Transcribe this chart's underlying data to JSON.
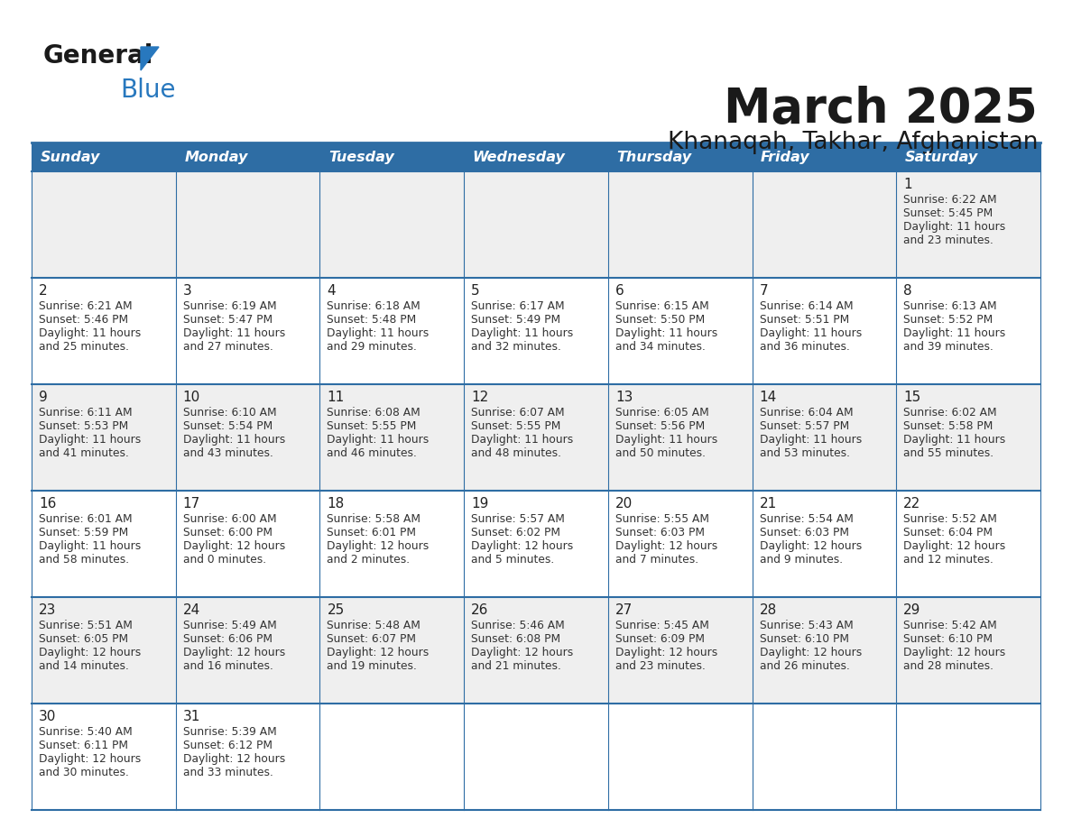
{
  "title": "March 2025",
  "subtitle": "Khanaqah, Takhar, Afghanistan",
  "header_color": "#2E6DA4",
  "header_text_color": "#FFFFFF",
  "days_of_week": [
    "Sunday",
    "Monday",
    "Tuesday",
    "Wednesday",
    "Thursday",
    "Friday",
    "Saturday"
  ],
  "background_light": "#EFEFEF",
  "background_white": "#FFFFFF",
  "line_color": "#2E6DA4",
  "text_color": "#333333",
  "logo_general_color": "#1a1a1a",
  "logo_blue_color": "#2878BE",
  "title_color": "#1a1a1a",
  "subtitle_color": "#1a1a1a",
  "calendar_data": [
    [
      null,
      null,
      null,
      null,
      null,
      null,
      {
        "day": 1,
        "sunrise": "6:22 AM",
        "sunset": "5:45 PM",
        "daylight_h": "11 hours",
        "daylight_m": "and 23 minutes."
      }
    ],
    [
      {
        "day": 2,
        "sunrise": "6:21 AM",
        "sunset": "5:46 PM",
        "daylight_h": "11 hours",
        "daylight_m": "and 25 minutes."
      },
      {
        "day": 3,
        "sunrise": "6:19 AM",
        "sunset": "5:47 PM",
        "daylight_h": "11 hours",
        "daylight_m": "and 27 minutes."
      },
      {
        "day": 4,
        "sunrise": "6:18 AM",
        "sunset": "5:48 PM",
        "daylight_h": "11 hours",
        "daylight_m": "and 29 minutes."
      },
      {
        "day": 5,
        "sunrise": "6:17 AM",
        "sunset": "5:49 PM",
        "daylight_h": "11 hours",
        "daylight_m": "and 32 minutes."
      },
      {
        "day": 6,
        "sunrise": "6:15 AM",
        "sunset": "5:50 PM",
        "daylight_h": "11 hours",
        "daylight_m": "and 34 minutes."
      },
      {
        "day": 7,
        "sunrise": "6:14 AM",
        "sunset": "5:51 PM",
        "daylight_h": "11 hours",
        "daylight_m": "and 36 minutes."
      },
      {
        "day": 8,
        "sunrise": "6:13 AM",
        "sunset": "5:52 PM",
        "daylight_h": "11 hours",
        "daylight_m": "and 39 minutes."
      }
    ],
    [
      {
        "day": 9,
        "sunrise": "6:11 AM",
        "sunset": "5:53 PM",
        "daylight_h": "11 hours",
        "daylight_m": "and 41 minutes."
      },
      {
        "day": 10,
        "sunrise": "6:10 AM",
        "sunset": "5:54 PM",
        "daylight_h": "11 hours",
        "daylight_m": "and 43 minutes."
      },
      {
        "day": 11,
        "sunrise": "6:08 AM",
        "sunset": "5:55 PM",
        "daylight_h": "11 hours",
        "daylight_m": "and 46 minutes."
      },
      {
        "day": 12,
        "sunrise": "6:07 AM",
        "sunset": "5:55 PM",
        "daylight_h": "11 hours",
        "daylight_m": "and 48 minutes."
      },
      {
        "day": 13,
        "sunrise": "6:05 AM",
        "sunset": "5:56 PM",
        "daylight_h": "11 hours",
        "daylight_m": "and 50 minutes."
      },
      {
        "day": 14,
        "sunrise": "6:04 AM",
        "sunset": "5:57 PM",
        "daylight_h": "11 hours",
        "daylight_m": "and 53 minutes."
      },
      {
        "day": 15,
        "sunrise": "6:02 AM",
        "sunset": "5:58 PM",
        "daylight_h": "11 hours",
        "daylight_m": "and 55 minutes."
      }
    ],
    [
      {
        "day": 16,
        "sunrise": "6:01 AM",
        "sunset": "5:59 PM",
        "daylight_h": "11 hours",
        "daylight_m": "and 58 minutes."
      },
      {
        "day": 17,
        "sunrise": "6:00 AM",
        "sunset": "6:00 PM",
        "daylight_h": "12 hours",
        "daylight_m": "and 0 minutes."
      },
      {
        "day": 18,
        "sunrise": "5:58 AM",
        "sunset": "6:01 PM",
        "daylight_h": "12 hours",
        "daylight_m": "and 2 minutes."
      },
      {
        "day": 19,
        "sunrise": "5:57 AM",
        "sunset": "6:02 PM",
        "daylight_h": "12 hours",
        "daylight_m": "and 5 minutes."
      },
      {
        "day": 20,
        "sunrise": "5:55 AM",
        "sunset": "6:03 PM",
        "daylight_h": "12 hours",
        "daylight_m": "and 7 minutes."
      },
      {
        "day": 21,
        "sunrise": "5:54 AM",
        "sunset": "6:03 PM",
        "daylight_h": "12 hours",
        "daylight_m": "and 9 minutes."
      },
      {
        "day": 22,
        "sunrise": "5:52 AM",
        "sunset": "6:04 PM",
        "daylight_h": "12 hours",
        "daylight_m": "and 12 minutes."
      }
    ],
    [
      {
        "day": 23,
        "sunrise": "5:51 AM",
        "sunset": "6:05 PM",
        "daylight_h": "12 hours",
        "daylight_m": "and 14 minutes."
      },
      {
        "day": 24,
        "sunrise": "5:49 AM",
        "sunset": "6:06 PM",
        "daylight_h": "12 hours",
        "daylight_m": "and 16 minutes."
      },
      {
        "day": 25,
        "sunrise": "5:48 AM",
        "sunset": "6:07 PM",
        "daylight_h": "12 hours",
        "daylight_m": "and 19 minutes."
      },
      {
        "day": 26,
        "sunrise": "5:46 AM",
        "sunset": "6:08 PM",
        "daylight_h": "12 hours",
        "daylight_m": "and 21 minutes."
      },
      {
        "day": 27,
        "sunrise": "5:45 AM",
        "sunset": "6:09 PM",
        "daylight_h": "12 hours",
        "daylight_m": "and 23 minutes."
      },
      {
        "day": 28,
        "sunrise": "5:43 AM",
        "sunset": "6:10 PM",
        "daylight_h": "12 hours",
        "daylight_m": "and 26 minutes."
      },
      {
        "day": 29,
        "sunrise": "5:42 AM",
        "sunset": "6:10 PM",
        "daylight_h": "12 hours",
        "daylight_m": "and 28 minutes."
      }
    ],
    [
      {
        "day": 30,
        "sunrise": "5:40 AM",
        "sunset": "6:11 PM",
        "daylight_h": "12 hours",
        "daylight_m": "and 30 minutes."
      },
      {
        "day": 31,
        "sunrise": "5:39 AM",
        "sunset": "6:12 PM",
        "daylight_h": "12 hours",
        "daylight_m": "and 33 minutes."
      },
      null,
      null,
      null,
      null,
      null
    ]
  ]
}
